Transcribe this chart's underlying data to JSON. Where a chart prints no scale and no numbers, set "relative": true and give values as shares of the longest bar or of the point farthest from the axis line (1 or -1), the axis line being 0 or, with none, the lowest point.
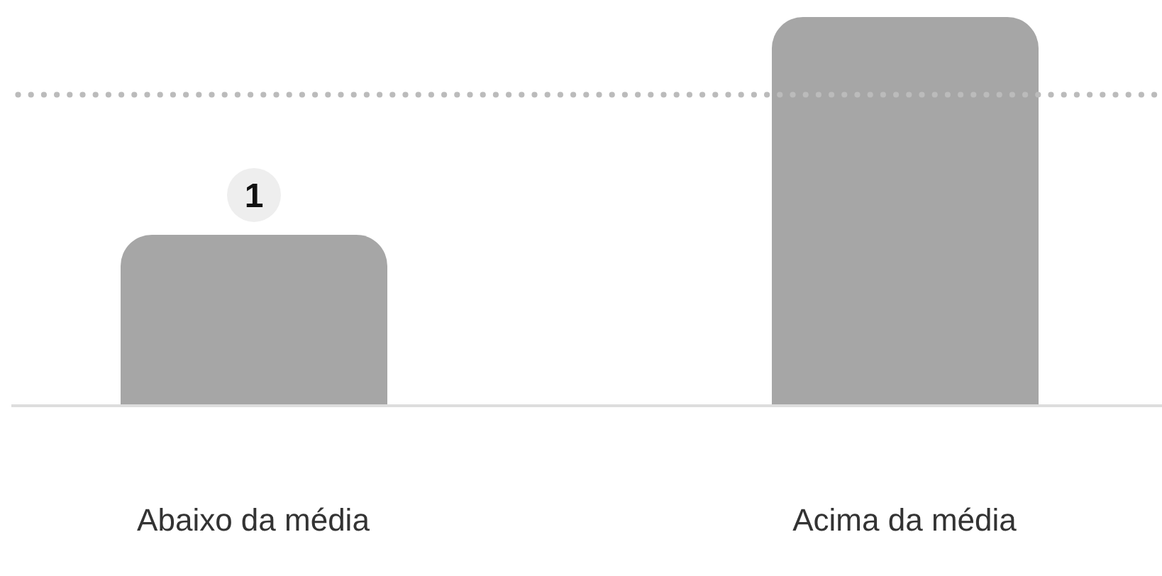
{
  "chart_data": {
    "type": "bar",
    "relative": true,
    "categories": [
      "Abaixo da média",
      "Acima da média"
    ],
    "values": [
      0.44,
      1
    ],
    "color": "#a6a6a6",
    "annotations": [
      {
        "text": "1",
        "x": "Abaixo da média",
        "y": 0.44
      }
    ],
    "ref_lines": [
      {
        "axis": "y",
        "value": 0.8,
        "color": "#bbbbbb",
        "line_style": "dotted"
      }
    ]
  }
}
